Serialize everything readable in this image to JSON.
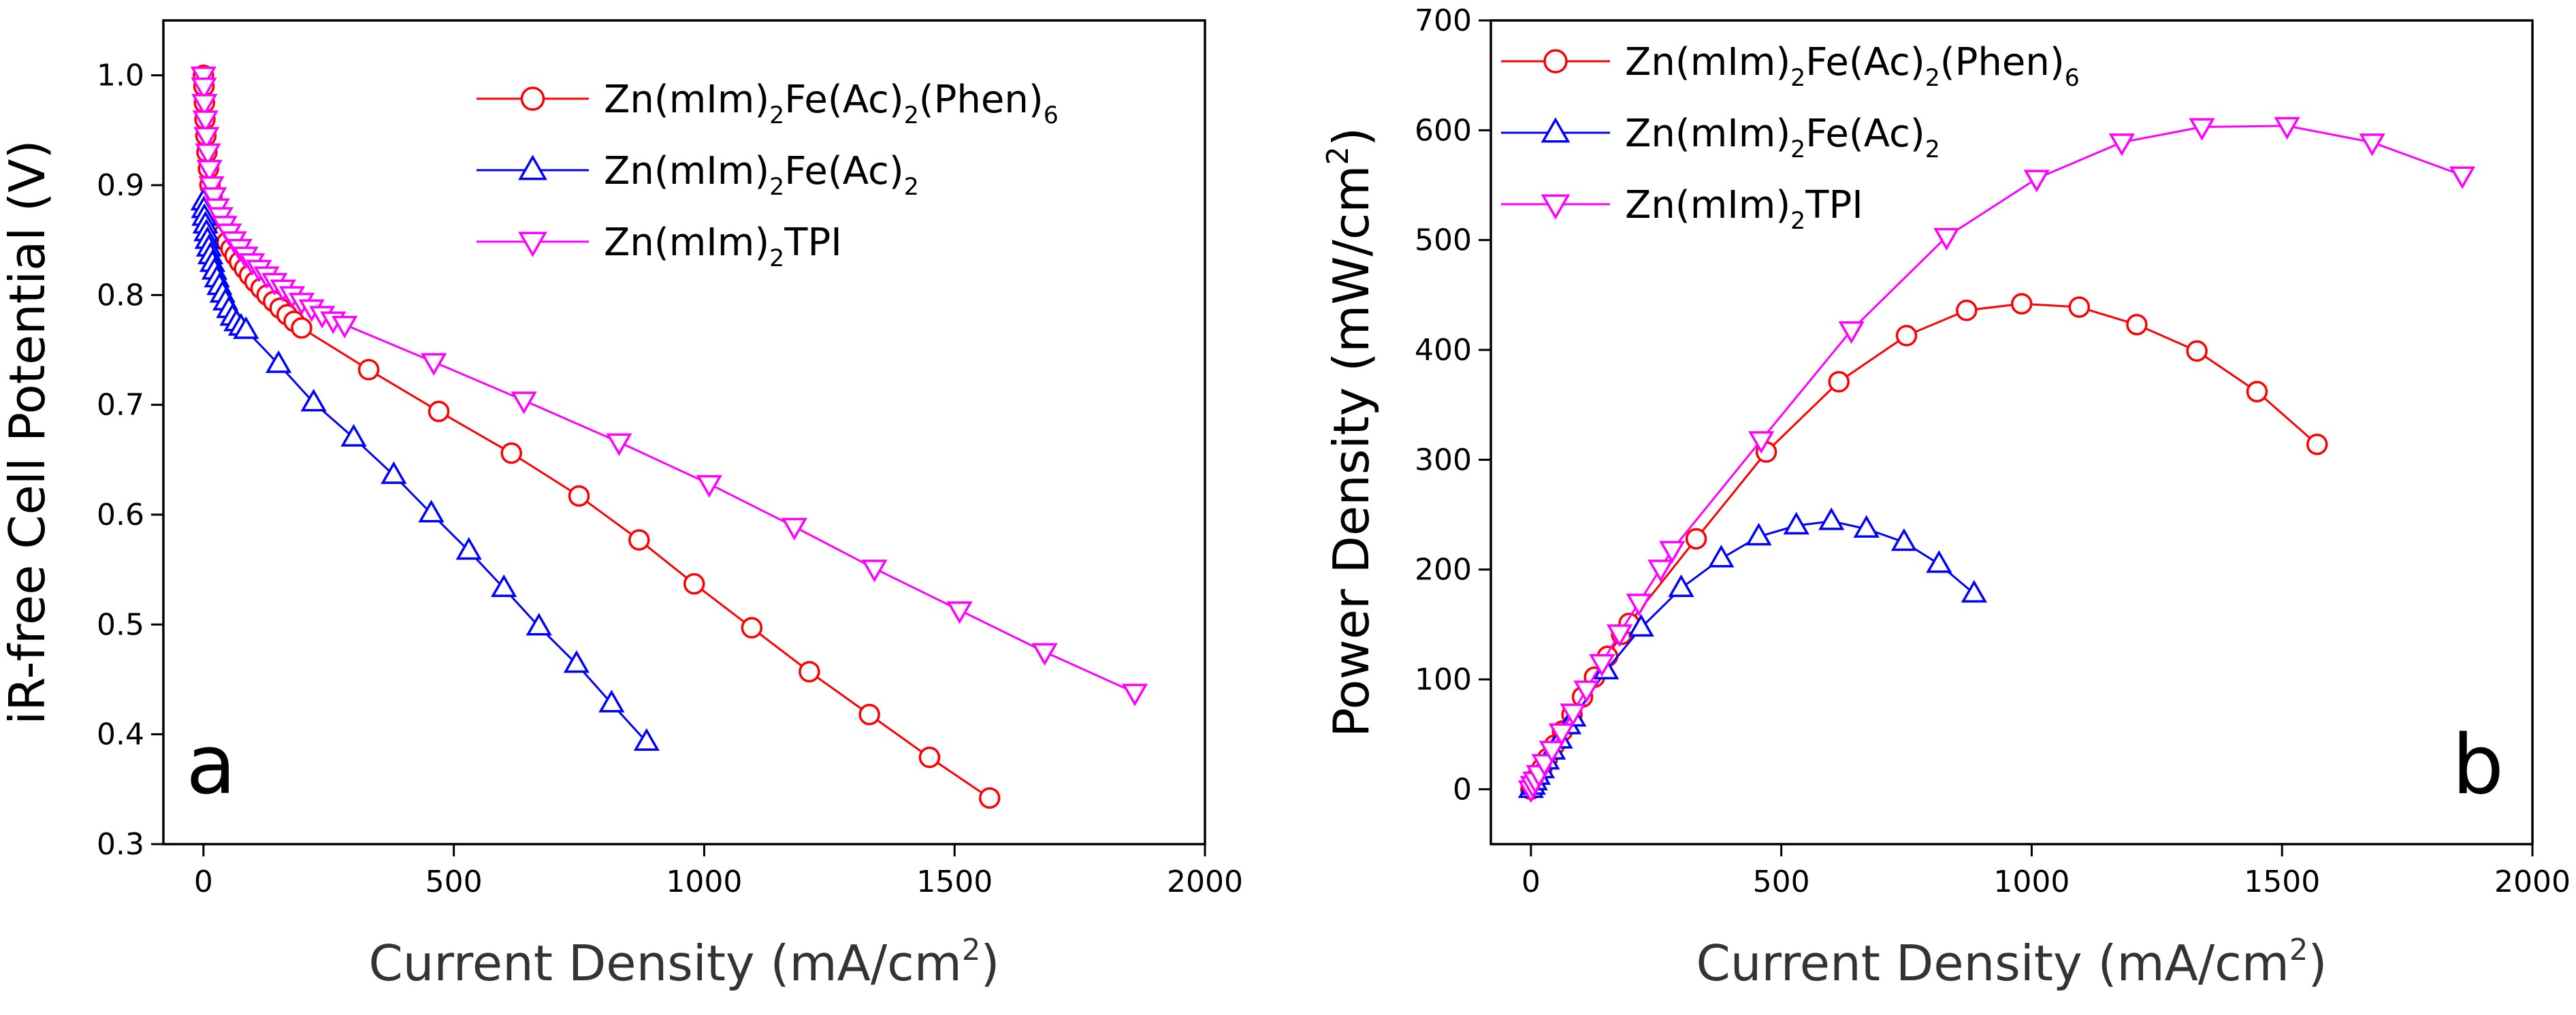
{
  "figure": {
    "background": "#ffffff",
    "axis_color": "#000000"
  },
  "chart_data": [
    {
      "panel_label": "a",
      "type": "line",
      "title": "",
      "xlabel": "Current Density (mA/cm",
      "xlabel_sup": "2",
      "xlabel_end": ")",
      "ylabel": "iR-free Cell Potential (V)",
      "xlim": [
        -80,
        2000
      ],
      "ylim": [
        0.3,
        1.05
      ],
      "xticks": [
        0,
        500,
        1000,
        1500,
        2000
      ],
      "xtick_labels": [
        "0",
        "500",
        "1000",
        "1500",
        "2000"
      ],
      "yticks": [
        0.3,
        0.4,
        0.5,
        0.6,
        0.7,
        0.8,
        0.9,
        1.0
      ],
      "ytick_labels": [
        "0.3",
        "0.4",
        "0.5",
        "0.6",
        "0.7",
        "0.8",
        "0.9",
        "1.0"
      ],
      "legend_position": "top-right",
      "series": [
        {
          "name": "Zn(mIm)2Fe(Ac)2(Phen)6",
          "legend_parts": [
            [
              "Zn(mIm)",
              ""
            ],
            [
              "2",
              "sub"
            ],
            [
              "Fe(Ac)",
              ""
            ],
            [
              "2",
              "sub"
            ],
            [
              "(Phen)",
              ""
            ],
            [
              "6",
              "sub"
            ]
          ],
          "color": "#ff0000",
          "marker": "circle",
          "x": [
            0,
            1,
            2,
            3,
            5,
            7,
            10,
            13,
            17,
            22,
            27,
            33,
            40,
            47,
            55,
            63,
            72,
            82,
            92,
            103,
            115,
            127,
            140,
            153,
            167,
            181,
            196,
            330,
            470,
            615,
            750,
            870,
            980,
            1095,
            1210,
            1330,
            1450,
            1570
          ],
          "y": [
            1.0,
            0.99,
            0.975,
            0.96,
            0.945,
            0.93,
            0.915,
            0.9,
            0.89,
            0.88,
            0.87,
            0.862,
            0.855,
            0.848,
            0.842,
            0.836,
            0.83,
            0.824,
            0.818,
            0.812,
            0.806,
            0.8,
            0.794,
            0.788,
            0.782,
            0.776,
            0.77,
            0.732,
            0.694,
            0.656,
            0.617,
            0.577,
            0.537,
            0.497,
            0.457,
            0.418,
            0.379,
            0.342
          ]
        },
        {
          "name": "Zn(mIm)2Fe(Ac)2",
          "legend_parts": [
            [
              "Zn(mIm)",
              ""
            ],
            [
              "2",
              "sub"
            ],
            [
              "Fe(Ac)",
              ""
            ],
            [
              "2",
              "sub"
            ]
          ],
          "color": "#0000ff",
          "marker": "triangle-up",
          "x": [
            0,
            1,
            2,
            4,
            6,
            8,
            11,
            14,
            18,
            22,
            27,
            32,
            38,
            44,
            51,
            58,
            66,
            75,
            85,
            150,
            220,
            300,
            380,
            455,
            530,
            600,
            670,
            745,
            815,
            885
          ],
          "y": [
            0.885,
            0.878,
            0.871,
            0.864,
            0.857,
            0.85,
            0.843,
            0.836,
            0.829,
            0.822,
            0.815,
            0.808,
            0.801,
            0.794,
            0.787,
            0.78,
            0.775,
            0.771,
            0.768,
            0.737,
            0.702,
            0.67,
            0.636,
            0.601,
            0.567,
            0.533,
            0.498,
            0.464,
            0.428,
            0.393
          ]
        },
        {
          "name": "Zn(mIm)2TPI",
          "legend_parts": [
            [
              "Zn(mIm)",
              ""
            ],
            [
              "2",
              "sub"
            ],
            [
              "TPI",
              ""
            ]
          ],
          "color": "#ff00ff",
          "marker": "triangle-down",
          "x": [
            0,
            1,
            2,
            4,
            6,
            9,
            12,
            16,
            21,
            27,
            34,
            42,
            51,
            61,
            72,
            84,
            97,
            111,
            126,
            142,
            159,
            177,
            196,
            216,
            237,
            259,
            282,
            460,
            640,
            830,
            1010,
            1180,
            1340,
            1510,
            1680,
            1860
          ],
          "y": [
            1.0,
            0.99,
            0.975,
            0.96,
            0.945,
            0.93,
            0.915,
            0.9,
            0.89,
            0.88,
            0.872,
            0.864,
            0.857,
            0.85,
            0.843,
            0.836,
            0.83,
            0.824,
            0.818,
            0.812,
            0.806,
            0.8,
            0.794,
            0.788,
            0.782,
            0.777,
            0.773,
            0.739,
            0.704,
            0.666,
            0.628,
            0.589,
            0.551,
            0.513,
            0.475,
            0.438
          ]
        }
      ]
    },
    {
      "panel_label": "b",
      "type": "line",
      "title": "",
      "xlabel": "Current Density (mA/cm",
      "xlabel_sup": "2",
      "xlabel_end": ")",
      "ylabel": "Power Density (mW/cm",
      "ylabel_sup": "2",
      "ylabel_end": ")",
      "xlim": [
        -80,
        2000
      ],
      "ylim": [
        -50,
        700
      ],
      "xticks": [
        0,
        500,
        1000,
        1500,
        2000
      ],
      "xtick_labels": [
        "0",
        "500",
        "1000",
        "1500",
        "2000"
      ],
      "yticks": [
        0,
        100,
        200,
        300,
        400,
        500,
        600,
        700
      ],
      "ytick_labels": [
        "0",
        "100",
        "200",
        "300",
        "400",
        "500",
        "600",
        "700"
      ],
      "legend_position": "top-left",
      "series": [
        {
          "name": "Zn(mIm)2Fe(Ac)2(Phen)6",
          "legend_parts": [
            [
              "Zn(mIm)",
              ""
            ],
            [
              "2",
              "sub"
            ],
            [
              "Fe(Ac)",
              ""
            ],
            [
              "2",
              "sub"
            ],
            [
              "(Phen)",
              ""
            ],
            [
              "6",
              "sub"
            ]
          ],
          "color": "#ff0000",
          "marker": "circle",
          "x": [
            0,
            3,
            7,
            13,
            22,
            33,
            47,
            63,
            82,
            103,
            127,
            153,
            181,
            196,
            330,
            470,
            615,
            750,
            870,
            980,
            1095,
            1210,
            1330,
            1450,
            1570
          ],
          "y": [
            0,
            3,
            6,
            12,
            19,
            28,
            40,
            53,
            68,
            84,
            102,
            121,
            141,
            151,
            228,
            307,
            371,
            413,
            436,
            442,
            439,
            423,
            399,
            362,
            314
          ]
        },
        {
          "name": "Zn(mIm)2Fe(Ac)2",
          "legend_parts": [
            [
              "Zn(mIm)",
              ""
            ],
            [
              "2",
              "sub"
            ],
            [
              "Fe(Ac)",
              ""
            ],
            [
              "2",
              "sub"
            ]
          ],
          "color": "#0000ff",
          "marker": "triangle-up",
          "x": [
            0,
            4,
            8,
            14,
            22,
            32,
            44,
            58,
            75,
            85,
            150,
            220,
            300,
            380,
            455,
            530,
            600,
            670,
            745,
            815,
            885
          ],
          "y": [
            0,
            3,
            7,
            12,
            18,
            26,
            35,
            45,
            58,
            65,
            108,
            147,
            183,
            210,
            230,
            240,
            244,
            237,
            225,
            205,
            178
          ]
        },
        {
          "name": "Zn(mIm)2TPI",
          "legend_parts": [
            [
              "Zn(mIm)",
              ""
            ],
            [
              "2",
              "sub"
            ],
            [
              "TPI",
              ""
            ]
          ],
          "color": "#ff00ff",
          "marker": "triangle-down",
          "x": [
            0,
            4,
            9,
            16,
            27,
            42,
            61,
            84,
            111,
            142,
            177,
            216,
            259,
            282,
            460,
            640,
            830,
            1010,
            1180,
            1340,
            1510,
            1680,
            1860
          ],
          "y": [
            0,
            4,
            8,
            14,
            24,
            36,
            52,
            70,
            91,
            115,
            142,
            170,
            201,
            218,
            318,
            418,
            503,
            556,
            589,
            603,
            604,
            589,
            559
          ]
        }
      ]
    }
  ]
}
